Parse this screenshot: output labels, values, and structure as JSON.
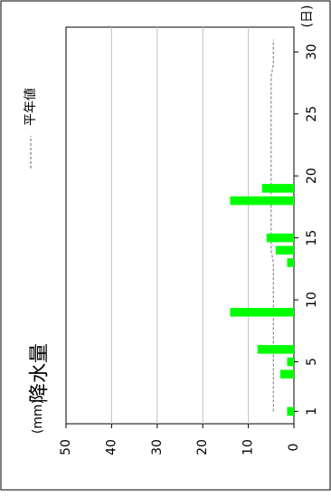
{
  "chart_data": {
    "type": "bar",
    "orientation": "rotated-90-clockwise",
    "title": "降水量",
    "y_unit": "(mm)",
    "x_unit": "(日)",
    "x_ticks": [
      "1",
      "5",
      "10",
      "15",
      "20",
      "25",
      "30"
    ],
    "y_ticks": [
      "0",
      "10",
      "20",
      "30",
      "40",
      "50"
    ],
    "xlim": [
      0,
      32
    ],
    "ylim": [
      0,
      50
    ],
    "grid": true,
    "legend": {
      "position": "top-right",
      "label": "平年値",
      "style": "dashed"
    },
    "series": [
      {
        "name": "降水量",
        "color": "#00ff00",
        "x": [
          1,
          2,
          3,
          4,
          5,
          6,
          7,
          8,
          9,
          10,
          11,
          12,
          13,
          14,
          15,
          16,
          17,
          18,
          19,
          20,
          21,
          22,
          23,
          24,
          25,
          26,
          27,
          28,
          29,
          30,
          31
        ],
        "values": [
          1.5,
          0,
          0,
          3,
          1.5,
          8,
          0,
          0,
          14,
          0,
          0,
          0,
          1.5,
          4,
          6,
          0,
          0,
          14,
          7,
          0,
          0,
          0,
          0,
          0,
          0,
          0,
          0,
          0,
          0,
          0,
          0
        ]
      },
      {
        "name": "平年値",
        "color": "#888888",
        "style": "dashed",
        "x": [
          1,
          5,
          6,
          7,
          8,
          9,
          10,
          11,
          12,
          13,
          14,
          15,
          16,
          17,
          18,
          19,
          20,
          21,
          22,
          23,
          24,
          25,
          26,
          27,
          28,
          29,
          30,
          31
        ],
        "values": [
          4.5,
          4.5,
          4.5,
          4.5,
          4.5,
          4.5,
          4.5,
          4.5,
          4.5,
          4.5,
          5,
          5,
          5,
          5,
          5,
          5,
          5,
          5,
          5,
          5,
          5,
          5,
          5,
          5,
          5,
          4.5,
          4.5,
          4.5
        ]
      }
    ]
  }
}
